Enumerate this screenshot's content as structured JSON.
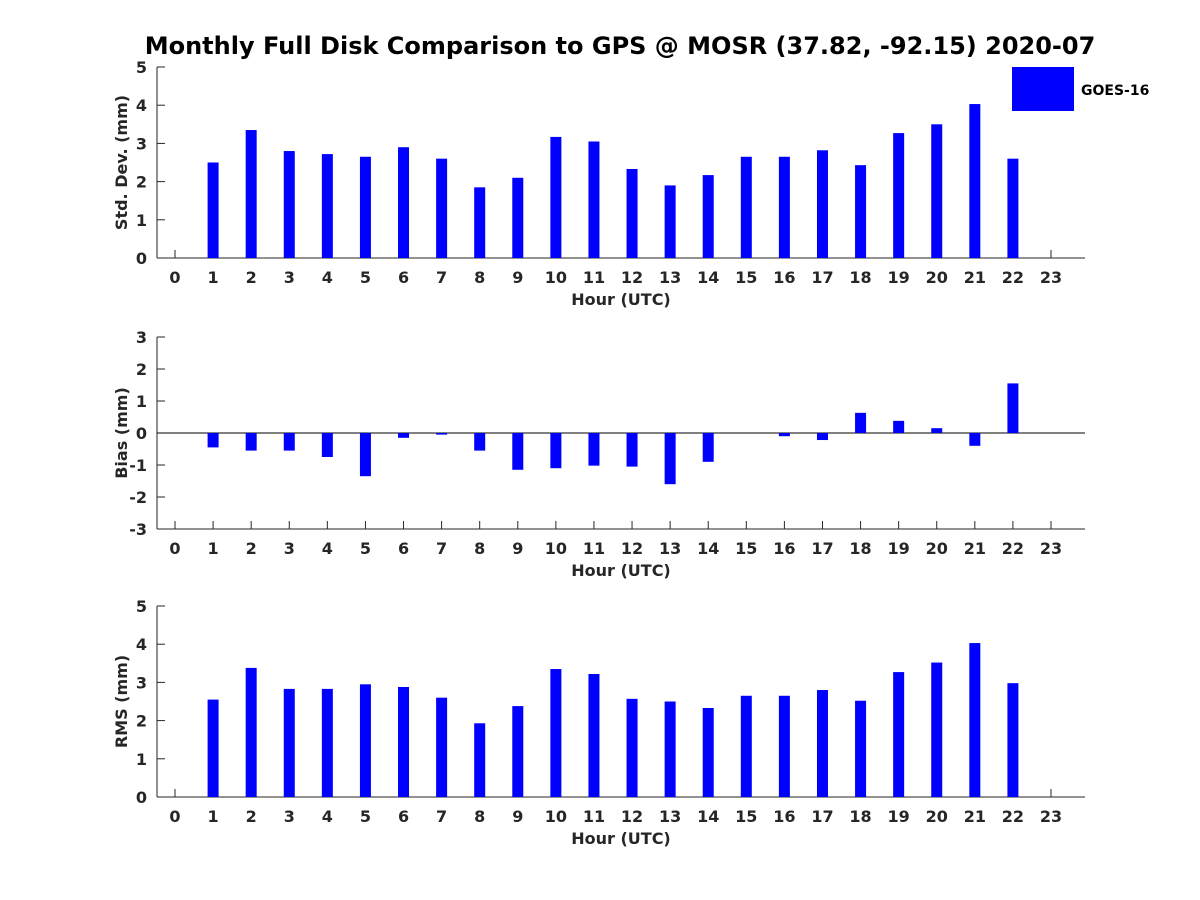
{
  "chart_data": {
    "title": "Monthly Full Disk Comparison to GPS @ MOSR (37.82, -92.15) 2020-07",
    "legend": [
      "GOES-16"
    ],
    "bar_color": "#0000ff",
    "hours": [
      0,
      1,
      2,
      3,
      4,
      5,
      6,
      7,
      8,
      9,
      10,
      11,
      12,
      13,
      14,
      15,
      16,
      17,
      18,
      19,
      20,
      21,
      22,
      23
    ],
    "panels": [
      {
        "type": "bar",
        "name": "std-dev",
        "ylabel": "Std. Dev. (mm)",
        "xlabel": "Hour (UTC)",
        "ylim": [
          0,
          5
        ],
        "yticks": [
          "0",
          "1",
          "2",
          "3",
          "4",
          "5"
        ],
        "values": [
          null,
          2.5,
          3.35,
          2.8,
          2.72,
          2.65,
          2.9,
          2.6,
          1.85,
          2.1,
          3.17,
          3.05,
          2.33,
          1.9,
          2.17,
          2.65,
          2.65,
          2.82,
          2.43,
          3.27,
          3.5,
          4.03,
          2.6,
          null
        ]
      },
      {
        "type": "bar",
        "name": "bias",
        "ylabel": "Bias (mm)",
        "xlabel": "Hour (UTC)",
        "ylim": [
          -3,
          3
        ],
        "yticks": [
          "-3",
          "-2",
          "-1",
          "0",
          "1",
          "2",
          "3"
        ],
        "values": [
          null,
          -0.45,
          -0.55,
          -0.55,
          -0.75,
          -1.35,
          -0.15,
          -0.05,
          -0.55,
          -1.15,
          -1.1,
          -1.02,
          -1.05,
          -1.6,
          -0.9,
          0,
          -0.1,
          -0.22,
          0.63,
          0.38,
          0.15,
          -0.4,
          1.55,
          null
        ]
      },
      {
        "type": "bar",
        "name": "rms",
        "ylabel": "RMS (mm)",
        "xlabel": "Hour (UTC)",
        "ylim": [
          0,
          5
        ],
        "yticks": [
          "0",
          "1",
          "2",
          "3",
          "4",
          "5"
        ],
        "values": [
          null,
          2.55,
          3.38,
          2.83,
          2.83,
          2.95,
          2.88,
          2.6,
          1.93,
          2.38,
          3.35,
          3.22,
          2.57,
          2.5,
          2.33,
          2.65,
          2.65,
          2.8,
          2.52,
          3.27,
          3.52,
          4.03,
          2.98,
          null
        ]
      }
    ]
  }
}
